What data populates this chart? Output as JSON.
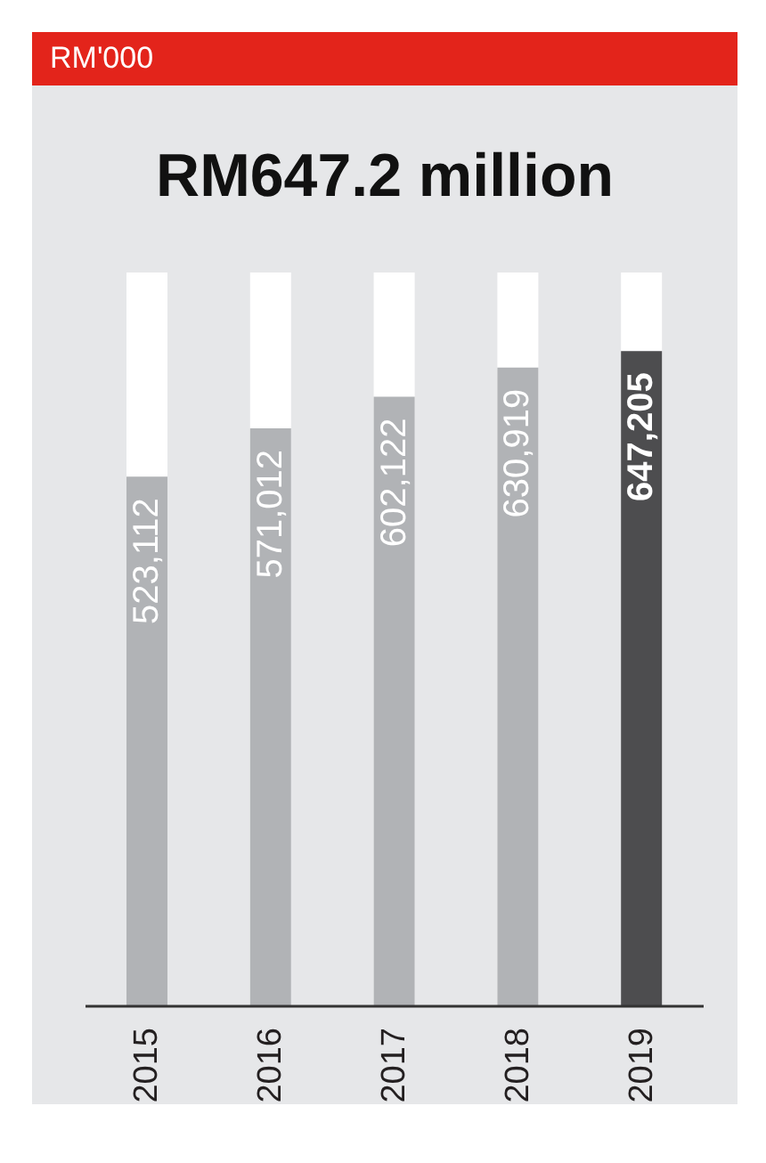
{
  "chart_data": {
    "type": "bar",
    "title": "RM647.2 million",
    "subtitle": "RM'000",
    "categories": [
      "2015",
      "2016",
      "2017",
      "2018",
      "2019"
    ],
    "values": [
      523112,
      571012,
      602122,
      630919,
      647205
    ],
    "colors": [
      "#b1b3b6",
      "#b1b3b6",
      "#b1b3b6",
      "#b1b3b6",
      "#4d4d4f"
    ],
    "value_labels": [
      "523,112",
      "571,012",
      "602,122",
      "630,919",
      "647,205"
    ]
  }
}
